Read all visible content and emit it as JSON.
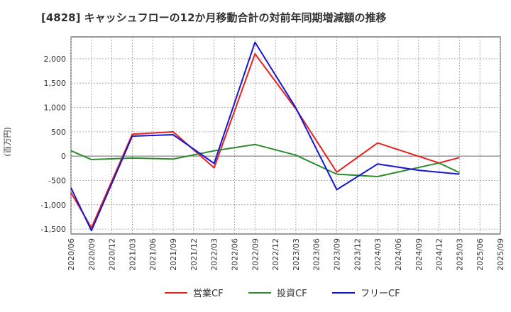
{
  "chart_data": {
    "type": "line",
    "title": "[4828]  キャッシュフローの12か月移動合計の対前年同期増減額の推移",
    "xlabel": "",
    "ylabel": "(百万円)",
    "ylim": [
      -1600,
      2450
    ],
    "yticks": [
      2000,
      1500,
      1000,
      500,
      0,
      -500,
      -1000,
      -1500
    ],
    "ytick_labels": [
      "2,000",
      "1,500",
      "1,000",
      "500",
      "0",
      "-500",
      "-1,000",
      "-1,500"
    ],
    "categories": [
      "2020/06",
      "2020/09",
      "2020/12",
      "2021/03",
      "2021/06",
      "2021/09",
      "2021/12",
      "2022/03",
      "2022/06",
      "2022/09",
      "2022/12",
      "2023/03",
      "2023/06",
      "2023/09",
      "2023/12",
      "2024/03",
      "2024/06",
      "2024/09",
      "2024/12",
      "2025/03",
      "2025/06",
      "2025/09"
    ],
    "grid": true,
    "legend_position": "bottom",
    "series": [
      {
        "name": "営業CF",
        "color": "#e8221f",
        "values": [
          -750,
          -1470,
          null,
          450,
          null,
          500,
          null,
          -240,
          null,
          2100,
          null,
          970,
          null,
          -330,
          null,
          270,
          null,
          null,
          -140,
          -30,
          null,
          null
        ]
      },
      {
        "name": "投資CF",
        "color": "#2e8b2e",
        "values": [
          110,
          -70,
          null,
          -40,
          null,
          -60,
          null,
          110,
          null,
          240,
          null,
          20,
          null,
          -370,
          null,
          -420,
          null,
          null,
          -140,
          -340,
          null,
          null
        ]
      },
      {
        "name": "フリーCF",
        "color": "#1515d4",
        "values": [
          -650,
          -1530,
          null,
          410,
          null,
          440,
          null,
          -150,
          null,
          2340,
          null,
          990,
          null,
          -690,
          null,
          -160,
          null,
          -290,
          null,
          -370,
          null,
          null
        ]
      }
    ]
  }
}
